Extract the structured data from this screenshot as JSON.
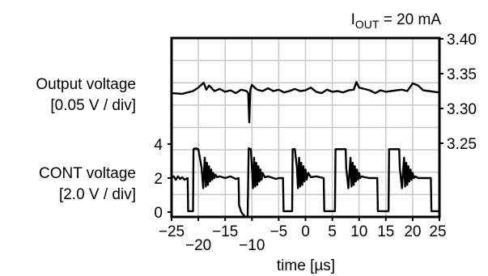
{
  "chart_data": {
    "type": "line",
    "title": "",
    "annotation": {
      "main": "I",
      "sub": "OUT",
      "rest": " = 20 mA"
    },
    "x_axis": {
      "label": "time [µs]",
      "range": [
        -25,
        25
      ],
      "ticks": [
        "−25",
        "−20",
        "−15",
        "−10",
        "−5",
        "0",
        "5",
        "10",
        "15",
        "20",
        "25"
      ]
    },
    "left_axis": {
      "ticks": [
        "0",
        "2",
        "4"
      ],
      "channel_labels": [
        {
          "name": "Output voltage",
          "scale": "[0.05 V / div]"
        },
        {
          "name": "CONT voltage",
          "scale": "[2.0 V / div]"
        }
      ]
    },
    "right_axis": {
      "ticks": [
        "3.25",
        "3.30",
        "3.35",
        "3.40"
      ],
      "range": [
        3.25,
        3.4
      ]
    },
    "grid": true,
    "series": [
      {
        "name": "Output voltage",
        "axis": "right",
        "x": [
          -25,
          -23,
          -21,
          -20,
          -19,
          -18.5,
          -18,
          -17,
          -16,
          -15,
          -14,
          -13,
          -12,
          -11,
          -10.7,
          -10.5,
          -10.3,
          -10,
          -9.5,
          -9,
          -8,
          -7,
          -6,
          -5,
          -4,
          -3,
          -2,
          -1,
          0,
          1,
          2,
          3,
          4,
          5,
          6,
          7,
          8,
          9,
          9.5,
          10,
          11,
          12,
          13,
          14,
          15,
          16,
          17,
          18,
          19,
          20,
          21,
          22,
          23,
          24,
          25
        ],
        "y": [
          3.322,
          3.321,
          3.325,
          3.33,
          3.337,
          3.327,
          3.333,
          3.325,
          3.328,
          3.324,
          3.326,
          3.322,
          3.327,
          3.325,
          3.322,
          3.28,
          3.327,
          3.334,
          3.33,
          3.327,
          3.325,
          3.329,
          3.325,
          3.327,
          3.323,
          3.325,
          3.328,
          3.325,
          3.326,
          3.33,
          3.324,
          3.322,
          3.327,
          3.324,
          3.325,
          3.323,
          3.326,
          3.327,
          3.338,
          3.33,
          3.328,
          3.326,
          3.322,
          3.326,
          3.324,
          3.325,
          3.326,
          3.327,
          3.325,
          3.336,
          3.333,
          3.326,
          3.325,
          3.324,
          3.323
        ]
      },
      {
        "name": "CONT voltage",
        "axis": "left",
        "x": [
          -25,
          -24.6,
          -24.2,
          -23.8,
          -23.4,
          -23,
          -22.6,
          -22,
          -21.9,
          -21.5,
          -21,
          -20.9,
          -20.7,
          -20.5,
          -20.3,
          -20.2,
          -20,
          -19.4,
          -19.1,
          -18.8,
          -18.6,
          -18.4,
          -18.2,
          -18,
          -17.8,
          -17.6,
          -17.4,
          -17.2,
          -17,
          -16.8,
          -16.5,
          -16,
          -15,
          -14,
          -13,
          -12.5,
          -12.4,
          -12,
          -11.5,
          -11.2,
          -10.8,
          -10.6,
          -10.2,
          -10,
          -9.8,
          -9.6,
          -9.4,
          -9.2,
          -9,
          -8.8,
          -8.6,
          -8.4,
          -8.2,
          -8,
          -7.6,
          -7,
          -6,
          -5.5,
          -5,
          -4.2,
          -4.1,
          -3.5,
          -2.5,
          -2.4,
          -2,
          -1.6,
          -1.4,
          -1.2,
          -1,
          -0.8,
          -0.6,
          -0.4,
          -0.2,
          0,
          0.2,
          0.5,
          1,
          2,
          3.4,
          3.5,
          4.5,
          5.5,
          5.6,
          6.5,
          7.5,
          7.6,
          8,
          8.4,
          8.6,
          8.8,
          9,
          9.2,
          9.4,
          9.6,
          9.8,
          10,
          10.2,
          10.5,
          11,
          12,
          13.4,
          13.5,
          14.5,
          15.5,
          15.6,
          16.5,
          17.5,
          17.6,
          18,
          18.4,
          18.6,
          18.8,
          19,
          19.2,
          19.4,
          19.6,
          19.8,
          20,
          20.2,
          20.5,
          21,
          22,
          23.4,
          23.5,
          24,
          24.5,
          25
        ],
        "y": [
          2.0,
          2.1,
          1.9,
          2.1,
          1.95,
          2.05,
          1.9,
          2.0,
          0.05,
          0.05,
          0.05,
          3.7,
          3.75,
          3.7,
          3.75,
          3.7,
          3.7,
          2.6,
          1.4,
          3.2,
          1.5,
          2.9,
          1.6,
          2.7,
          1.8,
          2.5,
          1.9,
          2.3,
          2.0,
          2.2,
          2.05,
          2.1,
          2.0,
          2.1,
          1.95,
          2.0,
          0.4,
          0.0,
          -0.2,
          -0.3,
          -0.3,
          3.75,
          3.7,
          2.6,
          1.4,
          3.2,
          1.5,
          2.9,
          1.6,
          2.7,
          1.8,
          2.5,
          1.9,
          2.3,
          2.05,
          2.1,
          2.0,
          1.95,
          2.0,
          2.0,
          0.05,
          0.05,
          0.05,
          3.7,
          3.7,
          2.6,
          1.4,
          3.2,
          1.5,
          2.9,
          1.6,
          2.7,
          1.8,
          2.5,
          1.9,
          2.3,
          2.05,
          2.1,
          2.0,
          0.05,
          0.05,
          0.05,
          3.7,
          3.7,
          3.7,
          2.6,
          1.4,
          3.2,
          1.5,
          2.9,
          1.6,
          2.7,
          1.8,
          2.5,
          1.9,
          2.3,
          2.0,
          2.1,
          2.05,
          2.0,
          2.0,
          0.05,
          0.05,
          0.05,
          3.7,
          3.7,
          3.7,
          2.6,
          1.4,
          3.2,
          1.5,
          2.9,
          1.6,
          2.7,
          1.8,
          2.5,
          1.9,
          2.3,
          2.0,
          2.1,
          2.0,
          2.0,
          2.0,
          0.05,
          0.05,
          0.05,
          0.05
        ]
      }
    ]
  }
}
